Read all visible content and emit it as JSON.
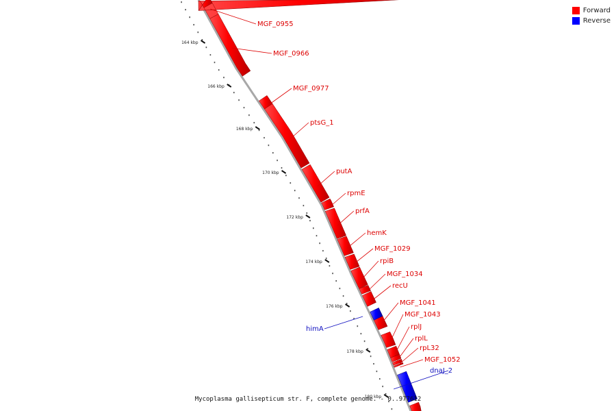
{
  "legend": {
    "forward_label": "Forward",
    "reverse_label": "Reverse",
    "forward_color": "#ff0000",
    "reverse_color": "#0000ff"
  },
  "caption": "Mycoplasma gallisepticum str. F, complete genome. - 0..977612",
  "ticks": [
    "164 kbp",
    "166 kbp",
    "168 kbp",
    "170 kbp",
    "172 kbp",
    "174 kbp",
    "176 kbp",
    "178 kbp",
    "180 kbp"
  ],
  "features": [
    {
      "label": "MGF_0955",
      "strand": "forward"
    },
    {
      "label": "MGF_0966",
      "strand": "forward"
    },
    {
      "label": "MGF_0977",
      "strand": "forward"
    },
    {
      "label": "ptsG_1",
      "strand": "forward"
    },
    {
      "label": "putA",
      "strand": "forward"
    },
    {
      "label": "rpmE",
      "strand": "forward"
    },
    {
      "label": "prfA",
      "strand": "forward"
    },
    {
      "label": "hemK",
      "strand": "forward"
    },
    {
      "label": "MGF_1029",
      "strand": "forward"
    },
    {
      "label": "rpiB",
      "strand": "forward"
    },
    {
      "label": "MGF_1034",
      "strand": "forward"
    },
    {
      "label": "recU",
      "strand": "forward"
    },
    {
      "label": "MGF_1041",
      "strand": "forward"
    },
    {
      "label": "MGF_1043",
      "strand": "forward"
    },
    {
      "label": "rplJ",
      "strand": "forward"
    },
    {
      "label": "rplL",
      "strand": "forward"
    },
    {
      "label": "rpL32",
      "strand": "forward"
    },
    {
      "label": "MGF_1052",
      "strand": "forward"
    },
    {
      "label": "himA",
      "strand": "reverse"
    },
    {
      "label": "dnaJ_2",
      "strand": "reverse"
    }
  ]
}
